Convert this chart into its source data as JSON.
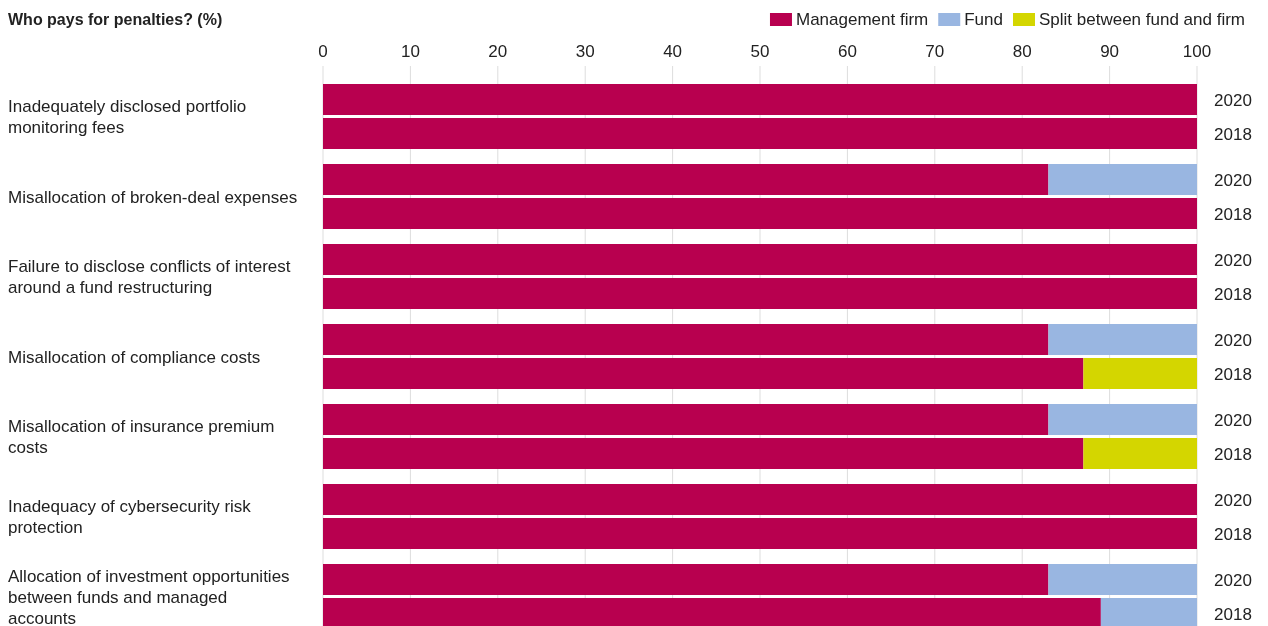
{
  "chart_data": {
    "type": "bar",
    "orientation": "horizontal",
    "stacked": true,
    "title": "Who pays for penalties? (%)",
    "categories": [
      "2020",
      "2018",
      "2020",
      "2018",
      "2020",
      "2018",
      "2020",
      "2018",
      "2020",
      "2018",
      "2020",
      "2018",
      "2020",
      "2018"
    ],
    "annotations": [
      "Inadequately disclosed portfolio monitoring fees",
      "Misallocation of broken-deal expenses",
      "Failure to disclose conflicts of interest around a fund restructuring",
      "Misallocation of compliance costs",
      "Misallocation of insurance premium costs",
      "Inadequacy of cybersecurity risk protection",
      "Allocation of investment opportunities between funds and managed accounts"
    ],
    "series": [
      {
        "name": "Management firm",
        "color": "#b8004f",
        "values": [
          100,
          100,
          83,
          100,
          100,
          100,
          83,
          87,
          83,
          87,
          100,
          100,
          83,
          89
        ]
      },
      {
        "name": "Fund",
        "color": "#99b6e1",
        "values": [
          null,
          null,
          17,
          null,
          null,
          null,
          17,
          null,
          17,
          null,
          null,
          null,
          17,
          11
        ]
      },
      {
        "name": "Split between fund and firm",
        "color": "#d4d600",
        "values": [
          null,
          null,
          null,
          null,
          null,
          null,
          null,
          13,
          null,
          13,
          null,
          null,
          null,
          null
        ]
      }
    ],
    "xlim": [
      0,
      100
    ],
    "xticks": [
      0,
      10,
      20,
      30,
      40,
      50,
      60,
      70,
      80,
      90,
      100
    ],
    "grid": "x",
    "legend": "top right"
  }
}
